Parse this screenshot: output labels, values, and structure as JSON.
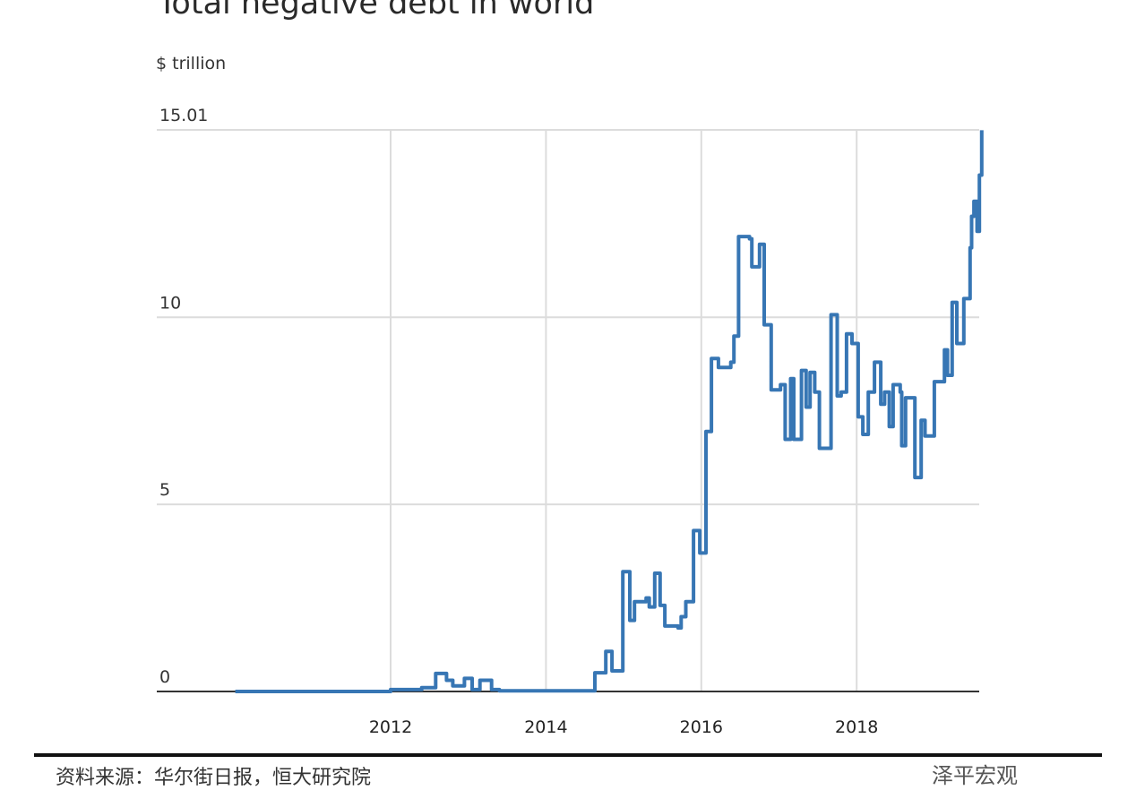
{
  "chart_data": {
    "type": "line",
    "title": "Total negative debt in world",
    "ylabel": "$ trillion",
    "xlabel": "",
    "xlim": [
      2009.5,
      2019.65
    ],
    "ylim": [
      0,
      15.01
    ],
    "yticks": [
      0,
      5,
      10,
      15.01
    ],
    "ytick_labels": [
      "0",
      "5",
      "10",
      "15.01"
    ],
    "xticks": [
      2012,
      2014,
      2016,
      2018
    ],
    "xtick_labels": [
      "2012",
      "2014",
      "2016",
      "2018"
    ],
    "grid": true,
    "line_color": "#3776b4",
    "step": true,
    "series": [
      {
        "x": [
          2010.0,
          2011.0,
          2012.0,
          2012.4,
          2012.58,
          2012.72,
          2012.8,
          2012.95,
          2013.05,
          2013.15,
          2013.3,
          2013.4,
          2014.0,
          2014.63,
          2014.68,
          2014.77,
          2014.85,
          2014.99,
          2015.08,
          2015.14,
          2015.29,
          2015.33,
          2015.4,
          2015.47,
          2015.53,
          2015.7,
          2015.74,
          2015.8,
          2015.9,
          2015.98,
          2016.06,
          2016.13,
          2016.22,
          2016.38,
          2016.42,
          2016.48,
          2016.62,
          2016.65,
          2016.75,
          2016.81,
          2016.9,
          2017.02,
          2017.08,
          2017.15,
          2017.19,
          2017.29,
          2017.35,
          2017.4,
          2017.46,
          2017.52,
          2017.67,
          2017.75,
          2017.8,
          2017.87,
          2017.94,
          2018.02,
          2018.08,
          2018.15,
          2018.23,
          2018.31,
          2018.36,
          2018.42,
          2018.47,
          2018.56,
          2018.58,
          2018.63,
          2018.75,
          2018.83,
          2018.88,
          2019.0,
          2019.13,
          2019.17,
          2019.23,
          2019.29,
          2019.38,
          2019.46,
          2019.48,
          2019.51,
          2019.55,
          2019.58,
          2019.61
        ],
        "y": [
          0.0,
          0.0,
          0.05,
          0.1,
          0.48,
          0.3,
          0.15,
          0.35,
          0.05,
          0.3,
          0.05,
          0.02,
          0.02,
          0.5,
          0.5,
          1.07,
          0.55,
          3.2,
          1.9,
          2.4,
          2.5,
          2.26,
          3.16,
          2.3,
          1.75,
          1.7,
          2.0,
          2.4,
          4.3,
          3.7,
          6.95,
          8.9,
          8.66,
          8.8,
          9.5,
          12.16,
          12.1,
          11.35,
          11.95,
          9.8,
          8.06,
          8.2,
          6.74,
          8.36,
          6.74,
          8.58,
          7.6,
          8.53,
          8.0,
          6.5,
          10.07,
          7.9,
          8.0,
          9.56,
          9.3,
          7.34,
          6.87,
          8.0,
          8.8,
          7.68,
          8.0,
          7.08,
          8.2,
          8.0,
          6.57,
          7.85,
          5.72,
          7.25,
          6.83,
          8.28,
          9.13,
          8.45,
          10.4,
          9.3,
          10.5,
          11.86,
          12.7,
          13.1,
          12.3,
          13.8,
          15.0
        ]
      }
    ]
  },
  "footer": {
    "source": "资料来源：华尔街日报，恒大研究院",
    "watermark": "泽平宏观"
  }
}
